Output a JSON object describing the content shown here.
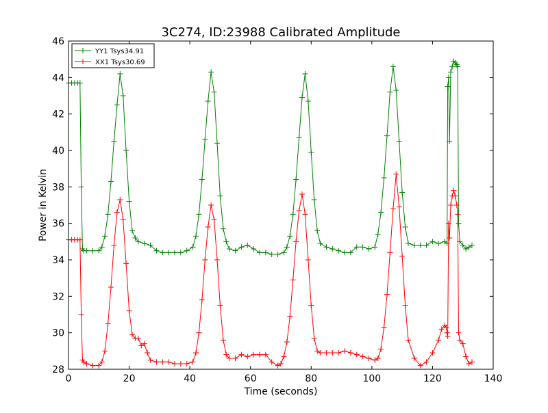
{
  "chart_data": {
    "type": "line",
    "title": "3C274, ID:23988 Calibrated Amplitude",
    "xlabel": "Time (seconds)",
    "ylabel": "Power in Kelvin",
    "xlim": [
      0,
      140
    ],
    "ylim": [
      28,
      46
    ],
    "x_ticks": [
      "0",
      "20",
      "40",
      "60",
      "80",
      "100",
      "120",
      "140"
    ],
    "y_ticks": [
      "28",
      "30",
      "32",
      "34",
      "36",
      "38",
      "40",
      "42",
      "44",
      "46"
    ],
    "grid": false,
    "legend_position": "top-left",
    "marker": "plus",
    "series": [
      {
        "name": "YY1 Tsys34.91",
        "color": "#008000",
        "x": [
          0,
          1,
          2,
          3,
          3.8,
          4.2,
          4.6,
          5,
          6,
          8,
          10,
          11,
          12,
          13,
          14,
          15,
          16,
          17,
          18,
          19,
          20,
          21,
          22,
          23,
          25,
          27,
          29,
          31,
          33,
          35,
          37,
          39,
          41,
          42,
          43,
          44,
          45,
          46,
          47,
          48,
          49,
          50,
          51,
          52,
          53,
          55,
          57,
          59,
          61,
          63,
          65,
          67,
          69,
          71,
          72,
          73,
          74,
          75,
          76,
          77,
          78,
          79,
          80,
          81,
          82,
          83,
          85,
          87,
          89,
          91,
          93,
          95,
          97,
          99,
          101,
          102,
          103,
          104,
          105,
          106,
          107,
          108,
          109,
          110,
          111,
          112,
          114,
          116,
          118,
          120,
          122,
          124,
          124.8,
          125,
          125.3,
          125.6,
          126,
          126.5,
          127,
          127.5,
          128,
          128.3,
          128.6,
          129,
          130,
          131,
          132,
          133
        ],
        "values": [
          43.7,
          43.7,
          43.7,
          43.7,
          43.7,
          38.0,
          34.6,
          34.5,
          34.5,
          34.5,
          34.5,
          34.7,
          35.3,
          36.5,
          38.3,
          40.5,
          42.5,
          44.2,
          43.0,
          40.0,
          37.2,
          35.6,
          35.2,
          35.0,
          34.9,
          34.8,
          34.5,
          34.4,
          34.4,
          34.4,
          34.4,
          34.5,
          34.7,
          35.3,
          36.5,
          38.4,
          40.6,
          42.7,
          44.3,
          43.2,
          40.4,
          37.5,
          35.7,
          35.0,
          34.6,
          34.5,
          34.7,
          34.8,
          34.6,
          34.4,
          34.4,
          34.3,
          34.3,
          34.4,
          34.7,
          35.3,
          36.5,
          38.4,
          40.7,
          42.9,
          44.2,
          42.7,
          39.9,
          37.3,
          35.6,
          34.9,
          34.7,
          34.6,
          34.5,
          34.4,
          34.4,
          34.7,
          34.7,
          34.6,
          34.7,
          35.4,
          36.6,
          38.5,
          40.8,
          43.2,
          44.6,
          43.3,
          40.5,
          37.7,
          35.8,
          34.9,
          34.8,
          34.8,
          34.8,
          35.0,
          34.9,
          35.0,
          34.9,
          43.5,
          44.0,
          40.5,
          44.3,
          44.6,
          44.9,
          44.8,
          44.7,
          44.6,
          36.0,
          35.0,
          34.8,
          34.6,
          34.7,
          34.8
        ]
      },
      {
        "name": "XX1 Tsys30.69",
        "color": "#ff0000",
        "x": [
          0,
          1,
          2,
          3,
          3.8,
          4.2,
          4.6,
          5,
          6,
          8,
          10,
          11,
          12,
          13,
          14,
          15,
          16,
          17,
          18,
          19,
          20,
          21,
          22,
          23,
          24,
          25,
          26,
          27,
          29,
          31,
          33,
          35,
          37,
          39,
          41,
          42,
          43,
          44,
          45,
          46,
          47,
          48,
          49,
          50,
          51,
          52,
          53,
          55,
          57,
          59,
          61,
          63,
          65,
          67,
          69,
          70,
          71,
          72,
          73,
          74,
          75,
          76,
          77,
          78,
          79,
          80,
          81,
          82,
          83,
          85,
          87,
          89,
          91,
          93,
          95,
          97,
          99,
          101,
          102,
          103,
          104,
          105,
          106,
          107,
          108,
          109,
          110,
          111,
          112,
          114,
          116,
          118,
          120,
          122,
          123,
          124,
          124.5,
          124.8,
          125,
          125.3,
          125.6,
          126,
          126.5,
          127,
          127.5,
          128,
          128.3,
          128.6,
          129,
          130,
          131,
          132,
          133
        ],
        "values": [
          35.1,
          35.1,
          35.1,
          35.1,
          35.1,
          31.0,
          28.5,
          28.4,
          28.3,
          28.2,
          28.2,
          28.4,
          29.0,
          30.5,
          32.5,
          34.8,
          36.6,
          37.3,
          36.2,
          33.8,
          31.2,
          29.9,
          29.7,
          29.7,
          29.3,
          29.4,
          28.9,
          28.5,
          28.4,
          28.4,
          28.4,
          28.3,
          28.3,
          28.3,
          28.4,
          28.9,
          30.0,
          31.8,
          34.0,
          35.8,
          37.0,
          36.2,
          34.0,
          31.5,
          29.6,
          28.8,
          28.6,
          28.6,
          28.8,
          28.7,
          28.8,
          28.8,
          28.8,
          28.4,
          28.2,
          28.3,
          28.7,
          29.5,
          30.9,
          32.9,
          35.0,
          36.7,
          37.6,
          36.5,
          34.0,
          31.5,
          29.7,
          29.0,
          28.9,
          28.9,
          28.9,
          28.9,
          29.0,
          28.9,
          28.8,
          28.7,
          28.6,
          28.5,
          28.6,
          29.1,
          30.3,
          32.1,
          34.4,
          36.8,
          38.7,
          36.9,
          34.2,
          31.5,
          29.6,
          28.6,
          28.2,
          28.4,
          28.9,
          29.6,
          30.2,
          30.4,
          30.3,
          30.0,
          29.8,
          36.0,
          35.2,
          37.0,
          37.5,
          37.8,
          37.5,
          37.0,
          36.5,
          30.0,
          29.6,
          29.4,
          28.7,
          28.3,
          28.4
        ]
      }
    ]
  }
}
